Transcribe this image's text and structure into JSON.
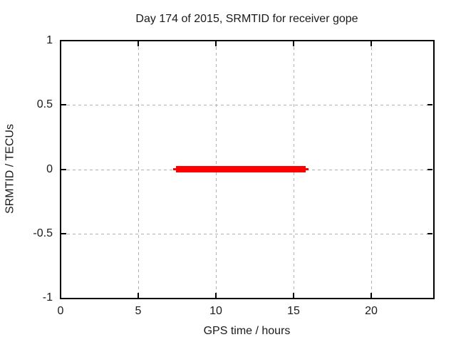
{
  "chart_data": {
    "type": "line",
    "title": "Day 174 of 2015, SRMTID for receiver gope",
    "xlabel": "GPS time / hours",
    "ylabel": "SRMTID / TECUs",
    "xlim": [
      0,
      24
    ],
    "ylim": [
      -1,
      1
    ],
    "grid": true,
    "legend": "none",
    "xticks": [
      {
        "label": "0",
        "value": 0
      },
      {
        "label": "5",
        "value": 5
      },
      {
        "label": "10",
        "value": 10
      },
      {
        "label": "15",
        "value": 15
      },
      {
        "label": "20",
        "value": 20
      }
    ],
    "yticks": [
      {
        "label": "1",
        "value": 1
      },
      {
        "label": "0.5",
        "value": 0.5
      },
      {
        "label": "0",
        "value": 0
      },
      {
        "label": "-0.5",
        "value": -0.5
      },
      {
        "label": "-1",
        "value": -1
      }
    ],
    "colors": {
      "series": "#ff0000",
      "grid": "#b0b0b0",
      "border": "#000000",
      "text": "#1a1a1a",
      "background": "#ffffff"
    },
    "series": [
      {
        "constant_y": 0,
        "segments": [
          {
            "x_start": 7.25,
            "x_end": 15.97,
            "y": 0,
            "thickness_px": 3
          },
          {
            "x_start": 7.43,
            "x_end": 15.79,
            "y": 0,
            "thickness_px": 9
          }
        ]
      }
    ]
  }
}
